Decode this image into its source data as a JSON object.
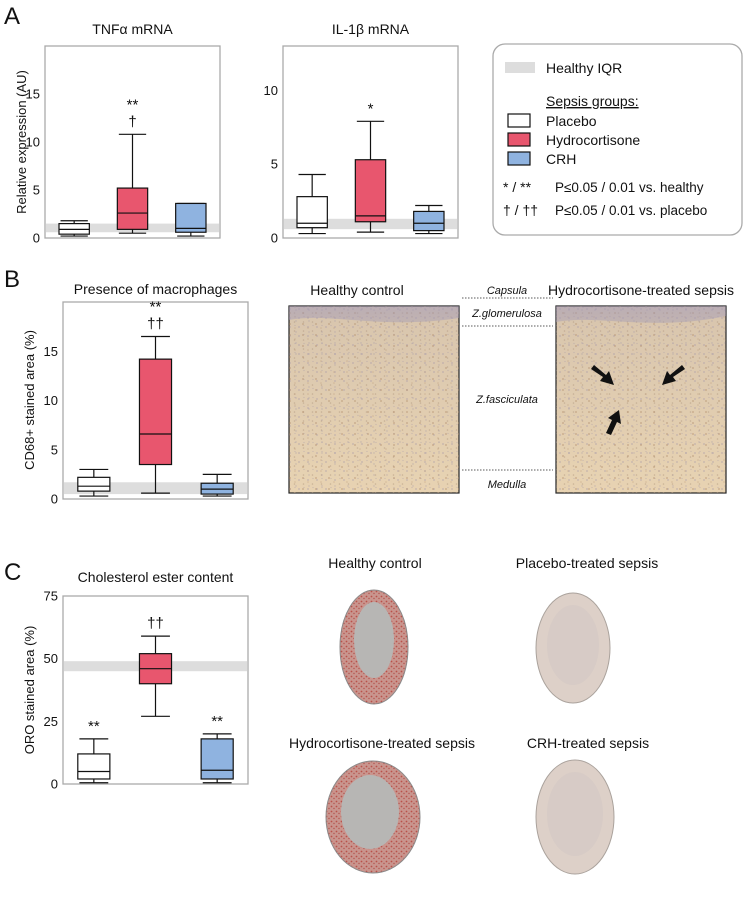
{
  "panel_labels": {
    "a": "A",
    "b": "B",
    "c": "C"
  },
  "colors": {
    "placebo": "#ffffff",
    "hydrocortisone": "#e8566e",
    "crh": "#8fb3e0",
    "healthy_iqr": "#dddddd"
  },
  "legend": {
    "healthy_iqr": "Healthy IQR",
    "groups_title": "Sepsis groups:",
    "groups": [
      "Placebo",
      "Hydrocortisone",
      "CRH"
    ],
    "sig1_symbols": "* / **",
    "sig1_text": "P≤0.05 / 0.01 vs. healthy",
    "sig2_symbols": "† / ††",
    "sig2_text": "P≤0.05 / 0.01 vs. placebo"
  },
  "micrographs": {
    "b_healthy": "Healthy control",
    "b_hc": "Hydrocortisone-treated sepsis",
    "zones": [
      "Capsula",
      "Z.glomerulosa",
      "Z.fasciculata",
      "Medulla"
    ],
    "c_healthy": "Healthy control",
    "c_placebo": "Placebo-treated sepsis",
    "c_hc": "Hydrocortisone-treated sepsis",
    "c_crh": "CRH-treated sepsis"
  },
  "chart_data": [
    {
      "type": "box",
      "panel": "A",
      "title": "TNFα mRNA",
      "ylabel": "Relative expression (AU)",
      "ylim": [
        0,
        20
      ],
      "yticks": [
        "0",
        "5",
        "10",
        "15"
      ],
      "categories": [
        "Placebo",
        "Hydrocortisone",
        "CRH"
      ],
      "healthy_iqr": [
        0.6,
        1.5
      ],
      "boxes": [
        {
          "group": "Placebo",
          "min": 0.2,
          "q1": 0.4,
          "median": 0.9,
          "q3": 1.5,
          "max": 1.8,
          "sig": ""
        },
        {
          "group": "Hydrocortisone",
          "min": 0.5,
          "q1": 0.9,
          "median": 2.6,
          "q3": 5.2,
          "max": 10.8,
          "sig": "**\n†"
        },
        {
          "group": "CRH",
          "min": 0.2,
          "q1": 0.6,
          "median": 1.0,
          "q3": 3.6,
          "max": 3.6,
          "sig": ""
        }
      ]
    },
    {
      "type": "box",
      "panel": "A",
      "title": "IL-1β mRNA",
      "ylabel": "",
      "ylim": [
        0,
        13
      ],
      "yticks": [
        "0",
        "5",
        "10"
      ],
      "categories": [
        "Placebo",
        "Hydrocortisone",
        "CRH"
      ],
      "healthy_iqr": [
        0.6,
        1.3
      ],
      "boxes": [
        {
          "group": "Placebo",
          "min": 0.3,
          "q1": 0.7,
          "median": 1.0,
          "q3": 2.8,
          "max": 4.3,
          "sig": ""
        },
        {
          "group": "Hydrocortisone",
          "min": 0.4,
          "q1": 1.1,
          "median": 1.5,
          "q3": 5.3,
          "max": 7.9,
          "sig": "*"
        },
        {
          "group": "CRH",
          "min": 0.3,
          "q1": 0.5,
          "median": 1.0,
          "q3": 1.8,
          "max": 2.2,
          "sig": ""
        }
      ]
    },
    {
      "type": "box",
      "panel": "B",
      "title": "Presence of macrophages",
      "ylabel": "CD68+ stained area  (%)",
      "ylim": [
        0,
        20
      ],
      "yticks": [
        "0",
        "5",
        "10",
        "15"
      ],
      "categories": [
        "Placebo",
        "Hydrocortisone",
        "CRH"
      ],
      "healthy_iqr": [
        0.5,
        1.7
      ],
      "boxes": [
        {
          "group": "Placebo",
          "min": 0.3,
          "q1": 0.8,
          "median": 1.3,
          "q3": 2.2,
          "max": 3.0,
          "sig": ""
        },
        {
          "group": "Hydrocortisone",
          "min": 0.6,
          "q1": 3.5,
          "median": 6.6,
          "q3": 14.2,
          "max": 16.5,
          "sig": "**\n††"
        },
        {
          "group": "CRH",
          "min": 0.3,
          "q1": 0.5,
          "median": 1.0,
          "q3": 1.6,
          "max": 2.5,
          "sig": ""
        }
      ]
    },
    {
      "type": "box",
      "panel": "C",
      "title": "Cholesterol ester content",
      "ylabel": "ORO stained area  (%)",
      "ylim": [
        0,
        75
      ],
      "yticks": [
        "0",
        "25",
        "50",
        "75"
      ],
      "categories": [
        "Placebo",
        "Hydrocortisone",
        "CRH"
      ],
      "healthy_iqr": [
        45,
        49
      ],
      "boxes": [
        {
          "group": "Placebo",
          "min": 0.5,
          "q1": 2.0,
          "median": 5.0,
          "q3": 12.0,
          "max": 18.0,
          "sig": "**"
        },
        {
          "group": "Hydrocortisone",
          "min": 27.0,
          "q1": 40.0,
          "median": 46.0,
          "q3": 52.0,
          "max": 59.0,
          "sig": "††"
        },
        {
          "group": "CRH",
          "min": 0.5,
          "q1": 2.0,
          "median": 5.5,
          "q3": 18.0,
          "max": 20.0,
          "sig": "**"
        }
      ]
    }
  ]
}
